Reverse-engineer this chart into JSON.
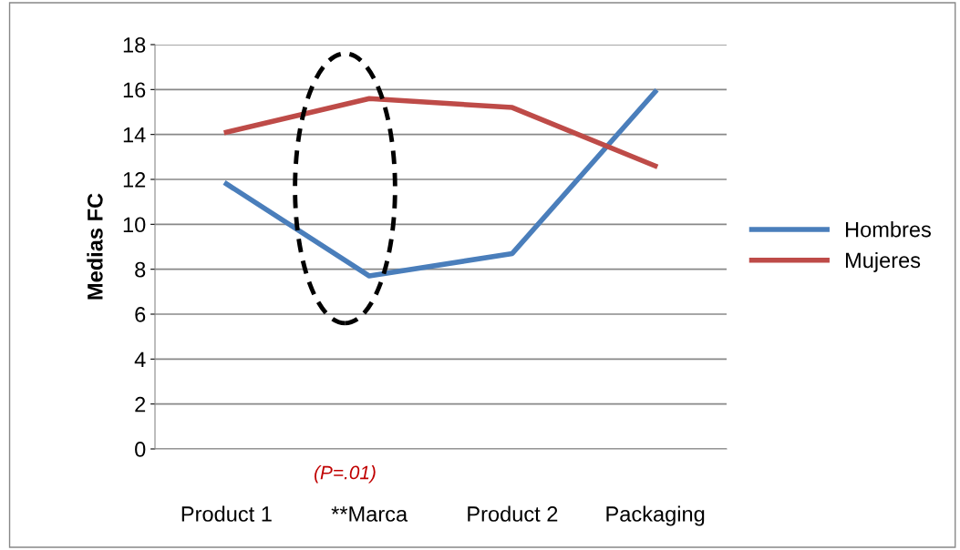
{
  "chart_data": {
    "type": "line",
    "ylabel": "Medias FC",
    "categories": [
      "Product 1",
      "**Marca",
      "Product 2",
      "Packaging"
    ],
    "series": [
      {
        "name": "Hombres",
        "color": "#4a7ebb",
        "values": [
          11.8,
          7.7,
          8.7,
          15.9
        ]
      },
      {
        "name": "Mujeres",
        "color": "#be4b48",
        "values": [
          14.1,
          15.6,
          15.2,
          12.6
        ]
      }
    ],
    "ylim": [
      0,
      18
    ],
    "yticks": [
      0,
      2,
      4,
      6,
      8,
      10,
      12,
      14,
      16,
      18
    ],
    "grid": "y",
    "legend": "right",
    "marker": "none",
    "line_style": "solid",
    "annotations": [
      "(P=.01)"
    ]
  }
}
